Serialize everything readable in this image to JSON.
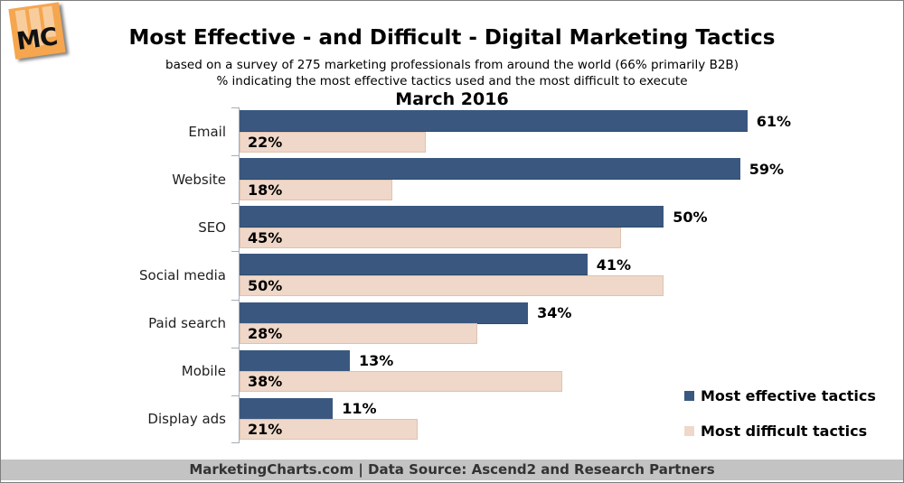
{
  "header": {
    "logo_text": "MC",
    "title": "Most Effective - and Difficult - Digital Marketing Tactics",
    "subtitle1": "based on a survey of 275 marketing professionals from around the world (66% primarily B2B)",
    "subtitle2": "% indicating the most effective tactics used and the most difficult to execute",
    "period": "March 2016"
  },
  "chart_data": {
    "type": "bar",
    "orientation": "horizontal",
    "title": "March 2016",
    "categories": [
      "Email",
      "Website",
      "SEO",
      "Social media",
      "Paid search",
      "Mobile",
      "Display ads"
    ],
    "series": [
      {
        "name": "Most effective tactics",
        "color": "#3A587F",
        "values": [
          61,
          59,
          50,
          41,
          34,
          13,
          11
        ],
        "label_position": "outside-right"
      },
      {
        "name": "Most difficult tactics",
        "color": "#EFD8C9",
        "values": [
          22,
          18,
          45,
          50,
          28,
          38,
          21
        ],
        "label_position": "inside-left"
      }
    ],
    "value_suffix": "%",
    "xlim": [
      0,
      65
    ],
    "grid": false,
    "legend_position": "bottom-right"
  },
  "legend": {
    "items": [
      {
        "label": "Most effective tactics",
        "color": "#3A587F"
      },
      {
        "label": "Most difficult tactics",
        "color": "#EFD8C9"
      }
    ]
  },
  "footer": {
    "text": "MarketingCharts.com | Data Source: Ascend2 and Research Partners"
  }
}
